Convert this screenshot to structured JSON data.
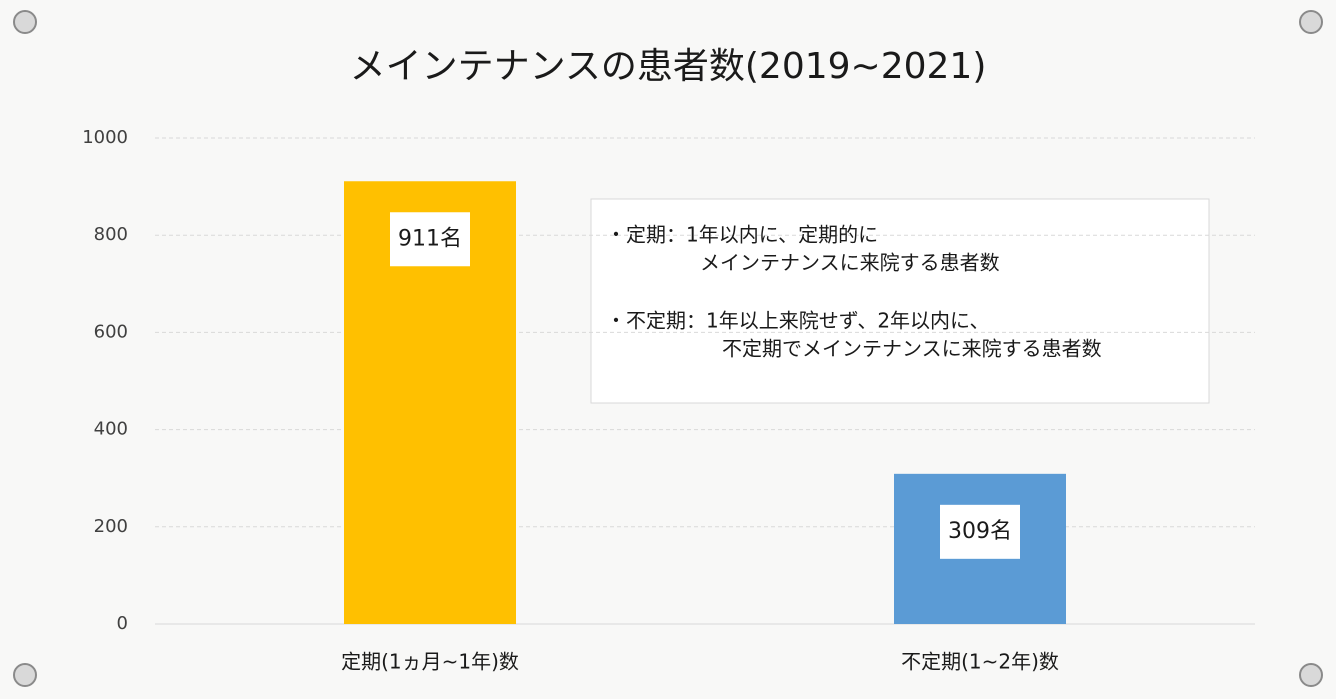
{
  "chart_data": {
    "type": "bar",
    "title": "メインテナンスの患者数(2019~2021)",
    "categories": [
      "定期(1ヵ月~1年)数",
      "不定期(1~2年)数"
    ],
    "values": [
      911,
      309
    ],
    "value_labels": [
      "911名",
      "309名"
    ],
    "colors": [
      "#ffc000",
      "#5b9bd5"
    ],
    "ylim": [
      0,
      1000
    ],
    "yticks": [
      0,
      200,
      400,
      600,
      800,
      1000
    ],
    "grid": true,
    "annotations": [
      {
        "lines": [
          "・定期：1年以内に、定期的に",
          "メインテナンスに来院する患者数"
        ]
      },
      {
        "lines": [
          "・不定期：1年以上来院せず、2年以内に、",
          "不定期でメインテナンスに来院する患者数"
        ]
      }
    ]
  }
}
